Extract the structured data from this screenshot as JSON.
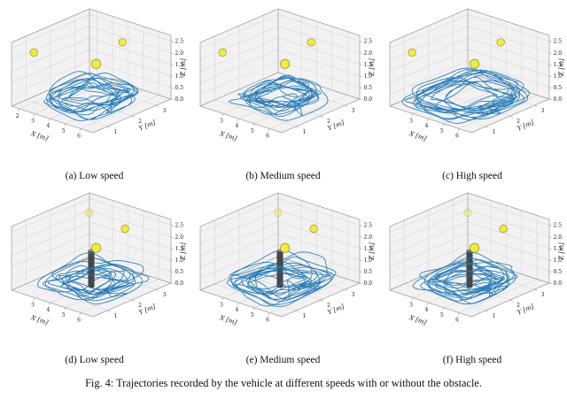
{
  "figure": {
    "caption": "Fig. 4: Trajectories recorded by the vehicle at different speeds with or without the obstacle.",
    "axes": {
      "x_label": "X [m]",
      "y_label": "Y [m]",
      "z_label": "Z [m]"
    },
    "style": {
      "trajectory_color": "#1f77b4",
      "sphere_fill": "#f2ea3d",
      "sphere_stroke": "#8a8228",
      "obstacle_color": "#474747",
      "obstacle_top_color": "#8c8c8c",
      "pane": "#f2f2f3",
      "grid": "#d6d6d6",
      "edge": "#9a9a9a",
      "tick_text": "#222222"
    },
    "subplots": [
      {
        "id": "a",
        "caption": "(a) Low speed"
      },
      {
        "id": "b",
        "caption": "(b) Medium speed"
      },
      {
        "id": "c",
        "caption": "(c) High speed"
      },
      {
        "id": "d",
        "caption": "(d) Low speed"
      },
      {
        "id": "e",
        "caption": "(e) Medium speed"
      },
      {
        "id": "f",
        "caption": "(f) High speed"
      }
    ]
  },
  "chart_data": [
    {
      "type": "line",
      "subtype": "3d-trajectory",
      "caption": "(a) Low speed",
      "x_range": [
        1.5,
        6.8
      ],
      "y_range": [
        0.4,
        3.6
      ],
      "z_range": [
        0,
        2.75
      ],
      "x_ticks": [
        [
          2,
          "2"
        ],
        [
          3,
          "3"
        ],
        [
          4,
          "4"
        ],
        [
          5,
          "5"
        ],
        [
          6,
          "6"
        ]
      ],
      "y_ticks": [
        [
          1,
          "1"
        ],
        [
          2,
          "2"
        ],
        [
          3,
          "3"
        ]
      ],
      "z_ticks": [
        [
          0,
          "0.0"
        ],
        [
          0.5,
          "0.5"
        ],
        [
          1,
          "1.0"
        ],
        [
          1.5,
          "1.5"
        ],
        [
          2,
          "2.0"
        ],
        [
          2.5,
          "2.5"
        ]
      ],
      "trajectory": {
        "seed": 7,
        "loops": 13,
        "cx": 4.15,
        "cy": 2.0,
        "rx": 2.0,
        "ry": 1.3,
        "exp": 0.62,
        "scale": 0.97
      },
      "markers": [
        {
          "x": 2.0,
          "y": 1.0,
          "z": 2.15,
          "r": 4.3
        },
        {
          "x": 4.0,
          "y": 2.3,
          "z": 1.5,
          "r": 5.2
        },
        {
          "x": 4.2,
          "y": 3.25,
          "z": 2.05,
          "r": 4.3
        }
      ],
      "obstacle": null
    },
    {
      "type": "line",
      "subtype": "3d-trajectory",
      "caption": "(b) Medium speed",
      "x_range": [
        1.5,
        6.8
      ],
      "y_range": [
        0.4,
        3.6
      ],
      "z_range": [
        0,
        2.75
      ],
      "x_ticks": [
        [
          3,
          "3"
        ],
        [
          4,
          "4"
        ],
        [
          5,
          "5"
        ],
        [
          6,
          "6"
        ]
      ],
      "y_ticks": [
        [
          1,
          "1"
        ],
        [
          2,
          "2"
        ],
        [
          3,
          "3"
        ]
      ],
      "z_ticks": [
        [
          0,
          "0.0"
        ],
        [
          0.5,
          "0.5"
        ],
        [
          1,
          "1.0"
        ],
        [
          1.5,
          "1.5"
        ],
        [
          2,
          "2.0"
        ],
        [
          2.5,
          "2.5"
        ]
      ],
      "trajectory": {
        "seed": 21,
        "loops": 14,
        "cx": 4.15,
        "cy": 2.0,
        "rx": 2.0,
        "ry": 1.3,
        "exp": 0.62,
        "scale": 1.0
      },
      "markers": [
        {
          "x": 2.0,
          "y": 1.0,
          "z": 2.15,
          "r": 4.3
        },
        {
          "x": 4.0,
          "y": 2.3,
          "z": 1.5,
          "r": 5.2
        },
        {
          "x": 4.2,
          "y": 3.25,
          "z": 2.05,
          "r": 4.3
        }
      ],
      "obstacle": null
    },
    {
      "type": "line",
      "subtype": "3d-trajectory",
      "caption": "(c) High speed",
      "x_range": [
        1.5,
        6.8
      ],
      "y_range": [
        0.4,
        3.6
      ],
      "z_range": [
        0,
        2.75
      ],
      "x_ticks": [
        [
          3,
          "3"
        ],
        [
          4,
          "4"
        ],
        [
          5,
          "5"
        ],
        [
          6,
          "6"
        ]
      ],
      "y_ticks": [
        [
          1,
          "1"
        ],
        [
          2,
          "2"
        ],
        [
          3,
          "3"
        ]
      ],
      "z_ticks": [
        [
          0,
          "0.0"
        ],
        [
          0.5,
          "0.5"
        ],
        [
          1,
          "1.0"
        ],
        [
          1.5,
          "1.5"
        ],
        [
          2,
          "2.0"
        ],
        [
          2.5,
          "2.5"
        ]
      ],
      "trajectory": {
        "seed": 35,
        "loops": 15,
        "cx": 4.15,
        "cy": 2.0,
        "rx": 2.0,
        "ry": 1.3,
        "exp": 0.62,
        "scale": 1.06
      },
      "markers": [
        {
          "x": 2.0,
          "y": 1.0,
          "z": 2.15,
          "r": 4.3
        },
        {
          "x": 4.0,
          "y": 2.3,
          "z": 1.5,
          "r": 5.2
        },
        {
          "x": 4.2,
          "y": 3.25,
          "z": 2.05,
          "r": 4.3
        }
      ],
      "obstacle": null
    },
    {
      "type": "line",
      "subtype": "3d-trajectory",
      "caption": "(d) Low speed",
      "x_range": [
        1.5,
        6.8
      ],
      "y_range": [
        0.4,
        3.6
      ],
      "z_range": [
        0,
        2.75
      ],
      "x_ticks": [
        [
          3,
          "3"
        ],
        [
          4,
          "4"
        ],
        [
          5,
          "5"
        ],
        [
          6,
          "6"
        ]
      ],
      "y_ticks": [
        [
          1,
          "1"
        ],
        [
          2,
          "2"
        ],
        [
          3,
          "3"
        ]
      ],
      "z_ticks": [
        [
          0,
          "0.0"
        ],
        [
          0.5,
          "0.5"
        ],
        [
          1,
          "1.0"
        ],
        [
          1.5,
          "1.5"
        ],
        [
          2,
          "2.0"
        ],
        [
          2.5,
          "2.5"
        ]
      ],
      "trajectory": {
        "seed": 52,
        "loops": 13,
        "cx": 4.15,
        "cy": 2.0,
        "rx": 2.0,
        "ry": 1.3,
        "exp": 0.62,
        "scale": 0.97
      },
      "markers": [
        {
          "x": 2.6,
          "y": 2.9,
          "z": 2.45,
          "r": 4.2,
          "opacity": 0.45
        },
        {
          "x": 4.0,
          "y": 2.3,
          "z": 1.5,
          "r": 5.2
        },
        {
          "x": 4.6,
          "y": 3.1,
          "z": 2.1,
          "r": 4.3
        }
      ],
      "obstacle": {
        "x": 4.15,
        "y": 2.0,
        "r": 0.18,
        "h": 1.55
      }
    },
    {
      "type": "line",
      "subtype": "3d-trajectory",
      "caption": "(e) Medium speed",
      "x_range": [
        1.5,
        6.8
      ],
      "y_range": [
        0.4,
        3.6
      ],
      "z_range": [
        0,
        2.75
      ],
      "x_ticks": [
        [
          3,
          "3"
        ],
        [
          4,
          "4"
        ],
        [
          5,
          "5"
        ],
        [
          6,
          "6"
        ]
      ],
      "y_ticks": [
        [
          1,
          "1"
        ],
        [
          2,
          "2"
        ],
        [
          3,
          "3"
        ]
      ],
      "z_ticks": [
        [
          0,
          "0.0"
        ],
        [
          0.5,
          "0.5"
        ],
        [
          1,
          "1.0"
        ],
        [
          1.5,
          "1.5"
        ],
        [
          2,
          "2.0"
        ],
        [
          2.5,
          "2.5"
        ]
      ],
      "trajectory": {
        "seed": 64,
        "loops": 14,
        "cx": 4.15,
        "cy": 2.0,
        "rx": 2.0,
        "ry": 1.3,
        "exp": 0.62,
        "scale": 1.0
      },
      "markers": [
        {
          "x": 2.6,
          "y": 2.9,
          "z": 2.45,
          "r": 4.2,
          "opacity": 0.45
        },
        {
          "x": 4.0,
          "y": 2.3,
          "z": 1.5,
          "r": 5.2
        },
        {
          "x": 4.6,
          "y": 3.1,
          "z": 2.1,
          "r": 4.3
        }
      ],
      "obstacle": {
        "x": 4.15,
        "y": 2.0,
        "r": 0.18,
        "h": 1.55
      }
    },
    {
      "type": "line",
      "subtype": "3d-trajectory",
      "caption": "(f) High speed",
      "x_range": [
        1.5,
        6.8
      ],
      "y_range": [
        0.4,
        3.6
      ],
      "z_range": [
        0,
        2.75
      ],
      "x_ticks": [
        [
          3,
          "3"
        ],
        [
          4,
          "4"
        ],
        [
          5,
          "5"
        ],
        [
          6,
          "6"
        ]
      ],
      "y_ticks": [
        [
          1,
          "1"
        ],
        [
          2,
          "2"
        ],
        [
          3,
          "3"
        ]
      ],
      "z_ticks": [
        [
          0,
          "0.0"
        ],
        [
          0.5,
          "0.5"
        ],
        [
          1,
          "1.0"
        ],
        [
          1.5,
          "1.5"
        ],
        [
          2,
          "2.0"
        ],
        [
          2.5,
          "2.5"
        ]
      ],
      "trajectory": {
        "seed": 77,
        "loops": 15,
        "cx": 4.15,
        "cy": 2.0,
        "rx": 2.0,
        "ry": 1.3,
        "exp": 0.62,
        "scale": 1.06
      },
      "markers": [
        {
          "x": 2.6,
          "y": 2.9,
          "z": 2.45,
          "r": 4.2,
          "opacity": 0.45
        },
        {
          "x": 4.0,
          "y": 2.3,
          "z": 1.5,
          "r": 5.2
        },
        {
          "x": 4.6,
          "y": 3.1,
          "z": 2.1,
          "r": 4.3
        }
      ],
      "obstacle": {
        "x": 4.15,
        "y": 2.0,
        "r": 0.18,
        "h": 1.55
      }
    }
  ]
}
